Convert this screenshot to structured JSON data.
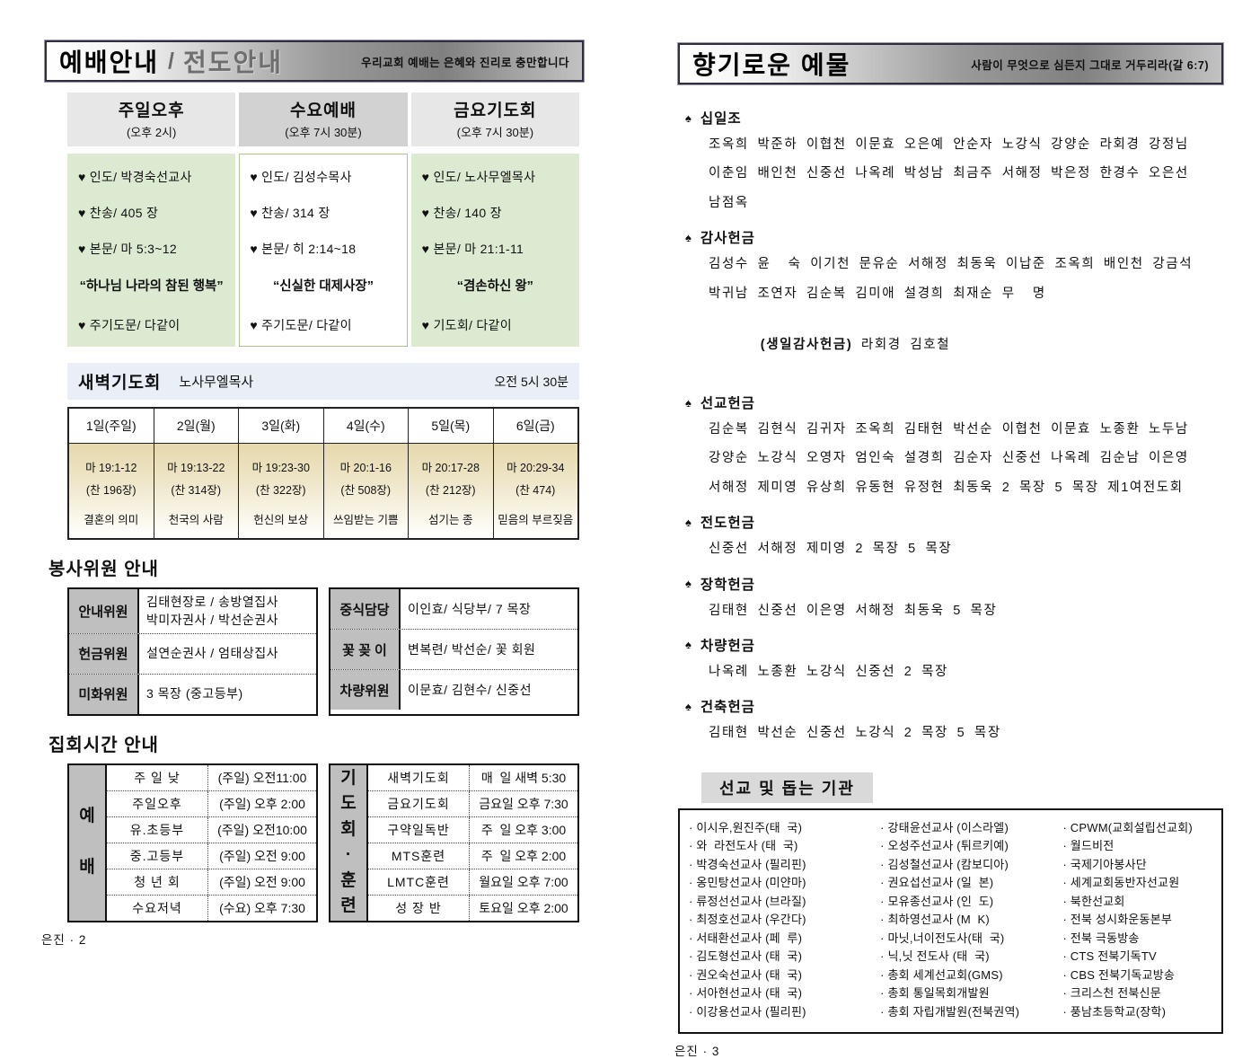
{
  "colors": {
    "service_green": "#dcead2",
    "dawn_bar_blue": "#e9eef7",
    "dawn_cell_beige": "#e6d8ac",
    "label_gray": "#bfbfbf",
    "header_cell_gray": "#e7e7e7",
    "header_cell_gray_dark": "#d2d2d2",
    "missions_head_gray": "#d9d9d9"
  },
  "left": {
    "header": {
      "title": "예배안내",
      "separator": "/",
      "title2": "전도안내",
      "subtitle": "우리교회 예배는 은혜와 진리로 충만합니다"
    },
    "services": [
      {
        "name": "주일오후",
        "time": "(오후 2시)",
        "leader": "♥ 인도/ 박경숙선교사",
        "hymn": "♥ 찬송/ 405 장",
        "scripture": "♥ 본문/ 마 5:3~12",
        "sermon": "“하나님 나라의 참된 행복”",
        "closing": "♥ 주기도문/ 다같이"
      },
      {
        "name": "수요예배",
        "time": "(오후 7시 30분)",
        "leader": "♥ 인도/ 김성수목사",
        "hymn": "♥ 찬송/ 314 장",
        "scripture": "♥ 본문/ 히 2:14~18",
        "sermon": "“신실한 대제사장”",
        "closing": "♥ 주기도문/ 다같이"
      },
      {
        "name": "금요기도회",
        "time": "(오후 7시 30분)",
        "leader": "♥ 인도/ 노사무엘목사",
        "hymn": "♥ 찬송/ 140 장",
        "scripture": "♥ 본문/ 마 21:1-11",
        "sermon": "“겸손하신 왕”",
        "closing": "♥ 기도회/ 다같이"
      }
    ],
    "dawn": {
      "title": "새벽기도회",
      "pastor": "노사무엘목사",
      "time": "오전 5시 30분",
      "days": [
        {
          "day": "1일(주일)",
          "scripture": "마 19:1-12",
          "hymn": "(찬 196장)",
          "topic": "결혼의 의미"
        },
        {
          "day": "2일(월)",
          "scripture": "마 19:13-22",
          "hymn": "(찬 314장)",
          "topic": "천국의 사람"
        },
        {
          "day": "3일(화)",
          "scripture": "마 19:23-30",
          "hymn": "(찬 322장)",
          "topic": "헌신의 보상"
        },
        {
          "day": "4일(수)",
          "scripture": "마 20:1-16",
          "hymn": "(찬 508장)",
          "topic": "쓰임받는 기쁨"
        },
        {
          "day": "5일(목)",
          "scripture": "마 20:17-28",
          "hymn": "(찬 212장)",
          "topic": "섬기는 종"
        },
        {
          "day": "6일(금)",
          "scripture": "마 20:29-34",
          "hymn": "(찬 474)",
          "topic": "믿음의 부르짖음"
        }
      ]
    },
    "volunteer": {
      "heading": "봉사위원 안내",
      "left_rows": [
        {
          "label": "안내위원",
          "line1": "김태현장로 / 송방열집사",
          "line2": "박미자권사 / 박선순권사"
        },
        {
          "label": "헌금위원",
          "line1": "설연순권사 / 엄태상집사"
        },
        {
          "label": "미화위원",
          "line1": "3 목장 (중고등부)"
        }
      ],
      "right_rows": [
        {
          "label": "중식담당",
          "line1": "이인효/ 식당부/ 7 목장"
        },
        {
          "label": "꽃 꽂 이",
          "line1": "변복련/ 박선순/ 꽃 회원"
        },
        {
          "label": "차량위원",
          "line1": "이문효/ 김현수/ 신중선"
        }
      ]
    },
    "meetings": {
      "heading": "집회시간 안내",
      "group1": {
        "label": "예\n\n배",
        "rows": [
          [
            "주 일 낮",
            "(주일) 오전11:00"
          ],
          [
            "주일오후",
            "(주일) 오후 2:00"
          ],
          [
            "유.초등부",
            "(주일) 오전10:00"
          ],
          [
            "중.고등부",
            "(주일) 오전 9:00"
          ],
          [
            "청 년 회",
            "(주일) 오전 9:00"
          ],
          [
            "수요저녁",
            "(수요) 오후 7:30"
          ]
        ]
      },
      "group2": {
        "label": "기\n도\n회\n·\n훈\n련",
        "rows": [
          [
            "새벽기도회",
            "매  일 새벽 5:30"
          ],
          [
            "금요기도회",
            "금요일 오후 7:30"
          ],
          [
            "구약일독반",
            "주  일 오후 3:00"
          ],
          [
            "MTS훈련",
            "주  일 오후 2:00"
          ],
          [
            "LMTC훈련",
            "월요일 오후 7:00"
          ],
          [
            "성 장 반",
            "토요일 오후 2:00"
          ]
        ]
      }
    },
    "footer": "은진 · 2"
  },
  "right": {
    "header": {
      "title": "향기로운 예물",
      "subtitle": "사람이 무엇으로 심든지 그대로 거두리라(갈 6:7)"
    },
    "bullet": "♠",
    "offerings": [
      {
        "title": "십일조",
        "lines": [
          "조옥희 박준하 이협천 이문효 오은예 안순자 노강식 강양순 라회경 강정님",
          "이춘임 배인천 신중선 나옥례 박성남 최금주 서해정 박은정 한경수 오은선",
          "남점옥"
        ]
      },
      {
        "title": "감사헌금",
        "lines": [
          "김성수 윤  숙 이기천 문유순 서해정 최동욱 이납준 조옥희 배인천 강금석",
          "박귀남 조연자 김순복 김미애 설경희 최재순 무  명"
        ],
        "special_bold": "(생일감사헌금)",
        "special_rest": " 라회경 김호철"
      },
      {
        "title": "선교헌금",
        "lines": [
          "김순복 김현식 김귀자 조옥희 김태현 박선순 이협천 이문효 노종환 노두남",
          "강양순 노강식 오영자 엄인숙 설경희 김순자 신중선 나옥례 김순남 이은영",
          "서해정 제미영 유상희 유동현 유정현 최동욱 2 목장 5 목장 제1여전도회"
        ]
      },
      {
        "title": "전도헌금",
        "lines": [
          "신중선 서해정 제미영 2 목장 5 목장"
        ]
      },
      {
        "title": "장학헌금",
        "lines": [
          "김태현 신중선 이은영 서해정 최동욱 5 목장"
        ]
      },
      {
        "title": "차량헌금",
        "lines": [
          "나옥례 노종환 노강식 신중선 2 목장"
        ]
      },
      {
        "title": "건축헌금",
        "lines": [
          "김태현 박선순 신중선 노강식 2 목장 5 목장"
        ]
      }
    ],
    "missions": {
      "heading": "선교 및 돕는 기관",
      "col1": [
        "이시우,원진주(태  국)",
        "와  라전도사 (태  국)",
        "박경숙선교사 (필리핀)",
        "옹민탕선교사 (미얀마)",
        "류정선선교사 (브라질)",
        "최정호선교사 (우간다)",
        "서태환선교사 (페  루)",
        "김도형선교사 (태  국)",
        "권오숙선교사 (태  국)",
        "서아현선교사 (태  국)",
        "이강용선교사 (필리핀)"
      ],
      "col2": [
        "강태윤선교사 (이스라엘)",
        "오성주선교사 (튀르키예)",
        "김성철선교사 (캄보디아)",
        "권요섭선교사 (일  본)",
        "모유종선교사 (인  도)",
        "최하영선교사 (M  K)",
        "마닛,너이전도사(태  국)",
        "닉,닛 전도사 (태  국)",
        "총회 세계선교회(GMS)",
        "총회 통일목회개발원",
        "총회 자립개발원(전북권역)"
      ],
      "col3": [
        "CPWM(교회설립선교회)",
        "월드비전",
        "국제기아봉사단",
        "세계교회동반자선교원",
        "북한선교회",
        "전북 성시화운동본부",
        "전북 극동방송",
        "CTS 전북기독TV",
        "CBS 전북기독교방송",
        "크리스천 전북신문",
        "풍남초등학교(장학)"
      ]
    },
    "footer": "은진 · 3"
  }
}
